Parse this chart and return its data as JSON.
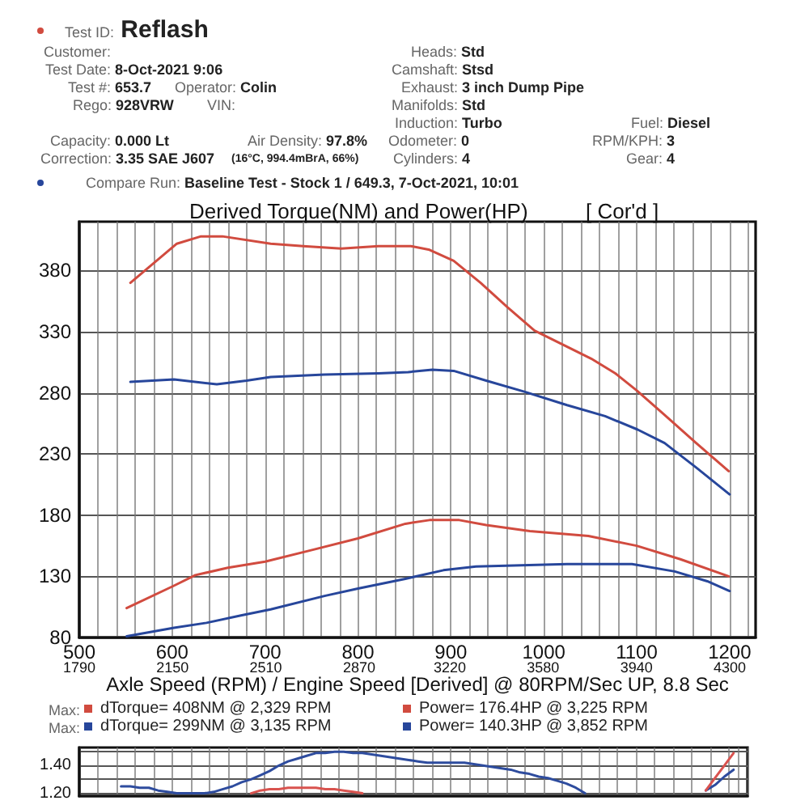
{
  "chart_data": [
    {
      "type": "line",
      "title": "Derived Torque(NM) and Power(HP)",
      "subtitle": "[ Cor'd ]",
      "xlabel": "Axle Speed (RPM) / Engine Speed [Derived] @ 80RPM/Sec UP, 8.8 Sec",
      "annotations": [
        "Test ID: Reflash",
        "Customer:",
        "Test Date: 8-Oct-2021 9:06",
        "Test #: 653.7",
        "Operator: Colin",
        "Rego: 928VRW",
        "VIN:",
        "Capacity: 0.000 Lt",
        "Air Density: 97.8%",
        "Correction: 3.35 SAE J607",
        "(16°C, 994.4mBrA, 66%)",
        "Heads: Std",
        "Camshaft: Stsd",
        "Exhaust: 3 inch Dump Pipe",
        "Manifolds: Std",
        "Induction: Turbo",
        "Odometer: 0",
        "Cylinders: 4",
        "Fuel: Diesel",
        "RPM/KPH: 3",
        "Gear: 4",
        "Compare Run: Baseline Test - Stock 1 / 649.3, 7-Oct-2021, 10:01",
        "Max:",
        "Max:"
      ],
      "xlim": [
        500,
        1228
      ],
      "xticks": [
        500,
        {
          "value": 520,
          "label": null
        },
        {
          "value": 540,
          "label": null
        },
        {
          "value": 560,
          "label": null
        },
        {
          "value": 580,
          "label": null
        },
        600,
        {
          "value": 620,
          "label": null
        },
        {
          "value": 640,
          "label": null
        },
        {
          "value": 660,
          "label": null
        },
        {
          "value": 680,
          "label": null
        },
        700,
        {
          "value": 720,
          "label": null
        },
        {
          "value": 740,
          "label": null
        },
        {
          "value": 760,
          "label": null
        },
        {
          "value": 780,
          "label": null
        },
        800,
        {
          "value": 820,
          "label": null
        },
        {
          "value": 840,
          "label": null
        },
        {
          "value": 860,
          "label": null
        },
        {
          "value": 880,
          "label": null
        },
        900,
        {
          "value": 920,
          "label": null
        },
        {
          "value": 940,
          "label": null
        },
        {
          "value": 960,
          "label": null
        },
        {
          "value": 980,
          "label": null
        },
        1000,
        {
          "value": 1020,
          "label": null
        },
        {
          "value": 1040,
          "label": null
        },
        {
          "value": 1060,
          "label": null
        },
        {
          "value": 1080,
          "label": null
        },
        1100,
        {
          "value": 1120,
          "label": null
        },
        {
          "value": 1140,
          "label": null
        },
        {
          "value": 1160,
          "label": null
        },
        {
          "value": 1180,
          "label": null
        },
        1200,
        {
          "value": 1220,
          "label": null
        }
      ],
      "x2lim": [
        1790,
        4400
      ],
      "x2ticks": [
        1790,
        2150,
        2510,
        2870,
        3220,
        3580,
        3940,
        4300
      ],
      "ylim": [
        80,
        420
      ],
      "yticks": [
        80,
        130,
        180,
        230,
        280,
        330,
        380
      ],
      "grid": true,
      "legend": "bottom",
      "series": [
        {
          "name": "dTorque= 408NM @ 2,329 RPM",
          "color": "#d14b3f",
          "x": [
            555,
            605,
            631,
            654,
            706,
            741,
            782,
            822,
            857,
            877,
            903,
            932,
            961,
            990,
            1019,
            1051,
            1077,
            1100,
            1130,
            1164,
            1199
          ],
          "values": [
            370,
            402,
            408,
            408,
            402,
            400,
            398,
            400,
            400,
            397,
            388,
            370,
            350,
            331,
            320,
            308,
            296,
            282,
            262,
            239,
            216
          ]
        },
        {
          "name": "Power= 176.4HP @ 3,225 RPM",
          "color": "#d14b3f",
          "x": [
            551,
            601,
            625,
            660,
            700,
            753,
            800,
            851,
            877,
            909,
            938,
            985,
            1048,
            1100,
            1147,
            1199
          ],
          "values": [
            104,
            122,
            131,
            137,
            142,
            152,
            161,
            173,
            176,
            176,
            172,
            167,
            163,
            155,
            144,
            130
          ]
        },
        {
          "name": "dTorque= 299NM @ 3,135 RPM",
          "color": "#27469b",
          "x": [
            555,
            602,
            648,
            680,
            706,
            764,
            822,
            854,
            880,
            903,
            938,
            979,
            1025,
            1066,
            1101,
            1130,
            1164,
            1200
          ],
          "values": [
            289,
            291,
            287,
            290,
            293,
            295,
            296,
            297,
            299,
            298,
            290,
            281,
            270,
            261,
            250,
            239,
            219,
            197
          ]
        },
        {
          "name": "Power= 140.3HP @ 3,852 RPM",
          "color": "#27469b",
          "x": [
            551,
            602,
            637,
            674,
            706,
            764,
            800,
            851,
            892,
            927,
            1025,
            1095,
            1141,
            1176,
            1200
          ],
          "values": [
            81,
            88,
            92,
            98,
            103,
            114,
            120,
            128,
            135,
            138,
            140,
            140,
            134,
            126,
            118
          ]
        }
      ]
    },
    {
      "type": "line",
      "categories": [
        null,
        null,
        null,
        null,
        null,
        null,
        null,
        null,
        null,
        null,
        null,
        null,
        null,
        null,
        null,
        null,
        null,
        null,
        null,
        null,
        null,
        null,
        null,
        null,
        null,
        null,
        null,
        null,
        null,
        null,
        null,
        null,
        null,
        null,
        null,
        null,
        null,
        null,
        null,
        null,
        null,
        null,
        null,
        null,
        null,
        null,
        null,
        null,
        null,
        null,
        null,
        null,
        null,
        null,
        null,
        null,
        null,
        null,
        null,
        null,
        null,
        null,
        null,
        null,
        null,
        null,
        null,
        null,
        null,
        null,
        null,
        null
      ],
      "ylim": [
        1.18,
        1.53
      ],
      "yticks": [
        {
          "value": 1.2,
          "label": "1.20"
        },
        {
          "value": 1.3,
          "label": null
        },
        {
          "value": 1.4,
          "label": "1.40"
        },
        {
          "value": 1.5,
          "label": null
        }
      ],
      "grid": true,
      "series": [
        {
          "color": "#2e4c9e",
          "values": [
            null,
            null,
            null,
            null,
            1.25,
            1.25,
            1.24,
            1.24,
            1.22,
            1.21,
            1.2,
            1.2,
            1.2,
            1.2,
            1.21,
            1.23,
            1.25,
            1.28,
            1.3,
            1.33,
            1.36,
            1.4,
            1.43,
            1.45,
            1.47,
            1.49,
            1.49,
            1.5,
            1.5,
            1.49,
            1.49,
            1.48,
            1.47,
            1.46,
            1.45,
            1.44,
            1.43,
            1.42,
            1.42,
            1.42,
            1.42,
            1.42,
            1.41,
            1.4,
            1.39,
            1.38,
            1.37,
            1.35,
            1.34,
            1.32,
            1.31,
            1.29,
            1.27,
            1.24,
            1.2,
            null,
            null,
            null,
            null,
            null,
            null,
            null,
            null,
            null,
            null,
            null,
            null,
            null,
            null,
            null,
            null,
            null
          ]
        },
        {
          "color": "#2e4c9e",
          "values": [
            null,
            null,
            null,
            null,
            null,
            null,
            null,
            null,
            null,
            null,
            null,
            null,
            null,
            null,
            null,
            null,
            null,
            null,
            null,
            null,
            null,
            null,
            null,
            null,
            null,
            null,
            null,
            null,
            null,
            null,
            null,
            null,
            null,
            null,
            null,
            null,
            null,
            null,
            null,
            null,
            null,
            null,
            null,
            null,
            null,
            null,
            null,
            null,
            null,
            null,
            null,
            null,
            null,
            null,
            null,
            null,
            null,
            null,
            null,
            null,
            null,
            null,
            null,
            null,
            null,
            null,
            null,
            1.22,
            1.26,
            1.32,
            1.37,
            null
          ]
        },
        {
          "color": "#d9534f",
          "values": [
            null,
            null,
            null,
            null,
            null,
            null,
            null,
            null,
            null,
            null,
            null,
            null,
            null,
            null,
            null,
            null,
            null,
            null,
            1.2,
            1.22,
            1.23,
            1.23,
            1.24,
            1.24,
            1.24,
            1.24,
            1.23,
            1.23,
            1.22,
            1.21,
            1.2,
            null,
            null,
            null,
            null,
            null,
            null,
            null,
            null,
            null,
            null,
            null,
            null,
            null,
            null,
            null,
            null,
            null,
            null,
            null,
            null,
            null,
            null,
            null,
            null,
            null,
            null,
            null,
            null,
            null,
            null,
            null,
            null,
            null,
            null,
            null,
            null,
            null,
            null,
            null,
            null,
            null
          ]
        },
        {
          "color": "#d9534f",
          "values": [
            null,
            null,
            null,
            null,
            null,
            null,
            null,
            null,
            null,
            null,
            null,
            null,
            null,
            null,
            null,
            null,
            null,
            null,
            null,
            null,
            null,
            null,
            null,
            null,
            null,
            null,
            null,
            null,
            null,
            null,
            null,
            null,
            null,
            null,
            null,
            null,
            null,
            null,
            null,
            null,
            null,
            null,
            null,
            null,
            null,
            null,
            null,
            null,
            null,
            null,
            null,
            null,
            null,
            null,
            null,
            null,
            null,
            null,
            null,
            null,
            null,
            null,
            null,
            null,
            null,
            null,
            null,
            1.22,
            1.31,
            1.4,
            1.49,
            null
          ]
        }
      ]
    }
  ]
}
